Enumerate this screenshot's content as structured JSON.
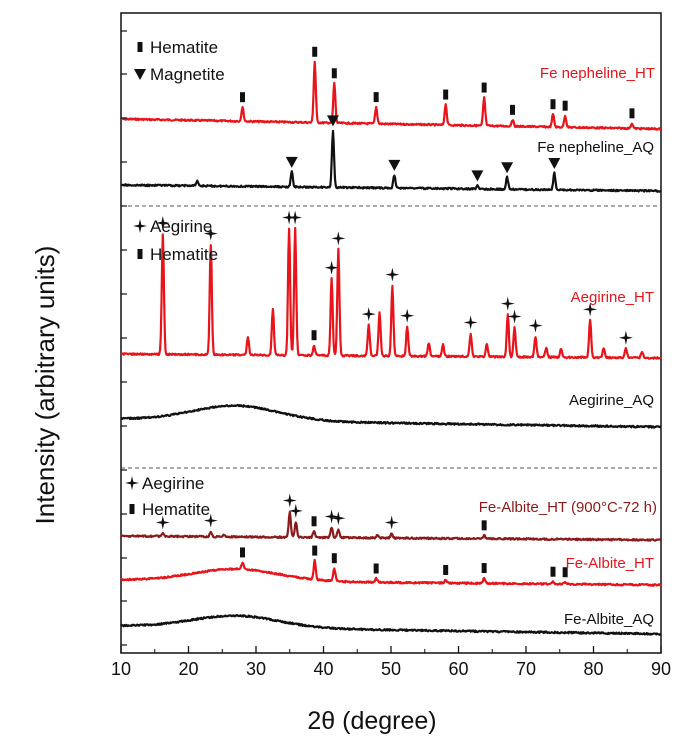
{
  "chart_data": {
    "type": "line",
    "xlabel": "2θ (degree)",
    "ylabel": "Intensity (arbitrary units)",
    "xlim": [
      10,
      90
    ],
    "x_ticks": [
      10,
      20,
      30,
      40,
      50,
      60,
      70,
      80,
      90
    ],
    "y_ticks_labeled": false,
    "grid": false,
    "colors": {
      "red": "#e8141a",
      "black": "#111111",
      "darkred": "#8b1a1a"
    },
    "series": [
      {
        "name": "Fe nepheline_HT",
        "color": "#e8141a",
        "baseline": 0.92,
        "peaks": [
          [
            28.0,
            0.22
          ],
          [
            38.7,
            0.95
          ],
          [
            41.6,
            0.62
          ],
          [
            47.8,
            0.26
          ],
          [
            58.1,
            0.32
          ],
          [
            63.8,
            0.44
          ],
          [
            68.0,
            0.1
          ],
          [
            74.0,
            0.2
          ],
          [
            75.8,
            0.18
          ],
          [
            85.7,
            0.08
          ]
        ]
      },
      {
        "name": "Fe nepheline_AQ",
        "color": "#111111",
        "baseline": 0.92,
        "peaks": [
          [
            21.3,
            0.08
          ],
          [
            35.3,
            0.25
          ],
          [
            41.4,
            0.95
          ],
          [
            50.5,
            0.22
          ],
          [
            62.8,
            0.06
          ],
          [
            67.2,
            0.2
          ],
          [
            74.2,
            0.28
          ]
        ]
      },
      {
        "name": "Aegirine_HT",
        "color": "#e8141a",
        "baseline": 0.92,
        "peaks": [
          [
            16.2,
            0.94
          ],
          [
            23.3,
            0.86
          ],
          [
            28.8,
            0.14
          ],
          [
            32.5,
            0.36
          ],
          [
            34.9,
            0.99
          ],
          [
            35.8,
            0.99
          ],
          [
            38.6,
            0.08
          ],
          [
            41.2,
            0.6
          ],
          [
            42.2,
            0.83
          ],
          [
            46.7,
            0.24
          ],
          [
            48.3,
            0.34
          ],
          [
            50.2,
            0.55
          ],
          [
            52.4,
            0.23
          ],
          [
            55.6,
            0.1
          ],
          [
            57.7,
            0.09
          ],
          [
            61.8,
            0.18
          ],
          [
            64.2,
            0.1
          ],
          [
            67.3,
            0.33
          ],
          [
            68.3,
            0.23
          ],
          [
            71.4,
            0.16
          ],
          [
            73.0,
            0.07
          ],
          [
            75.2,
            0.07
          ],
          [
            79.5,
            0.29
          ],
          [
            81.5,
            0.07
          ],
          [
            84.8,
            0.07
          ],
          [
            87.2,
            0.05
          ]
        ]
      },
      {
        "name": "Aegirine_AQ",
        "color": "#111111",
        "baseline": 0.92,
        "hump": true,
        "peaks": []
      },
      {
        "name": "Fe-Albite_HT (900°C-72 h)",
        "color": "#8b1a1a",
        "baseline": 0.92,
        "peaks": [
          [
            16.2,
            0.1
          ],
          [
            23.3,
            0.18
          ],
          [
            25.2,
            0.08
          ],
          [
            35.0,
            0.92
          ],
          [
            35.9,
            0.55
          ],
          [
            38.6,
            0.22
          ],
          [
            41.2,
            0.36
          ],
          [
            42.2,
            0.3
          ],
          [
            48.0,
            0.1
          ],
          [
            50.1,
            0.16
          ],
          [
            63.8,
            0.12
          ]
        ]
      },
      {
        "name": "Fe-Albite_HT",
        "color": "#e8141a",
        "baseline": 0.92,
        "hump": true,
        "peaks": [
          [
            28.0,
            0.18
          ],
          [
            38.7,
            0.5
          ],
          [
            41.6,
            0.34
          ],
          [
            47.8,
            0.1
          ],
          [
            58.1,
            0.08
          ],
          [
            63.8,
            0.14
          ],
          [
            74.0,
            0.06
          ],
          [
            75.8,
            0.05
          ]
        ]
      },
      {
        "name": "Fe-Albite_AQ",
        "color": "#111111",
        "baseline": 0.92,
        "hump": true,
        "peaks": []
      }
    ],
    "markers": [
      {
        "series": "Fe nepheline_HT",
        "type": "hematite",
        "x": [
          28.0,
          38.7,
          41.6,
          47.8,
          58.1,
          63.8,
          68.0,
          74.0,
          75.8,
          85.7
        ]
      },
      {
        "series": "Fe nepheline_AQ",
        "type": "magnetite",
        "x": [
          35.3,
          41.4,
          50.5,
          62.8,
          67.2,
          74.2
        ]
      },
      {
        "series": "Aegirine_HT",
        "type": "aegirine",
        "x": [
          16.2,
          23.3,
          34.9,
          35.8,
          41.2,
          42.2,
          46.7,
          50.2,
          52.4,
          61.8,
          67.3,
          68.3,
          71.4,
          79.5,
          84.8
        ]
      },
      {
        "series": "Aegirine_HT",
        "type": "hematite",
        "x": [
          38.6
        ]
      },
      {
        "series": "Fe-Albite_HT (900°C-72 h)",
        "type": "aegirine",
        "x": [
          16.2,
          23.3,
          35.0,
          35.9,
          41.2,
          42.2,
          50.1
        ]
      },
      {
        "series": "Fe-Albite_HT (900°C-72 h)",
        "type": "hematite",
        "x": [
          38.6,
          63.8
        ]
      },
      {
        "series": "Fe-Albite_HT",
        "type": "hematite",
        "x": [
          28.0,
          38.7,
          41.6,
          47.8,
          58.1,
          63.8,
          74.0,
          75.8
        ]
      }
    ],
    "legends": [
      {
        "items": [
          {
            "symbol": "hematite",
            "label": "Hematite"
          },
          {
            "symbol": "magnetite",
            "label": "Magnetite"
          }
        ]
      },
      {
        "items": [
          {
            "symbol": "aegirine",
            "label": "Aegirine"
          },
          {
            "symbol": "hematite",
            "label": "Hematite"
          }
        ]
      },
      {
        "items": [
          {
            "symbol": "aegirine",
            "label": "Aegirine"
          },
          {
            "symbol": "hematite",
            "label": "Hematite"
          }
        ]
      }
    ],
    "section_dividers": true
  }
}
